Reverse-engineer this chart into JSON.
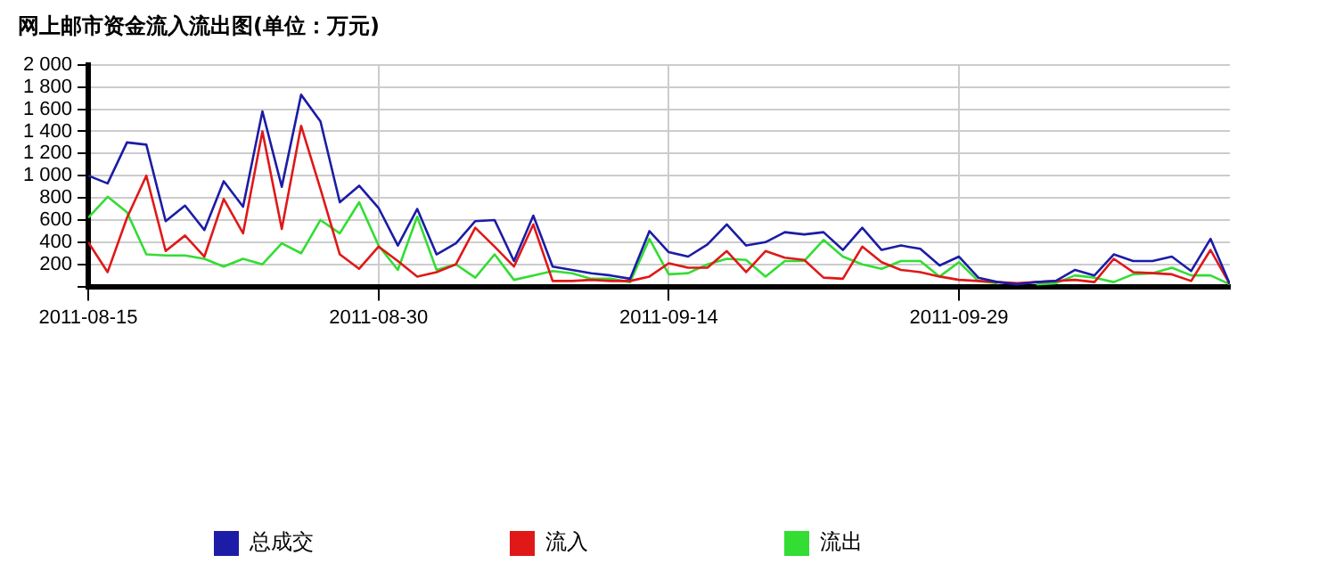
{
  "chart_data": {
    "type": "line",
    "title": "网上邮市资金流入流出图(单位：万元)",
    "x": [
      "2011-08-15",
      "2011-08-16",
      "2011-08-17",
      "2011-08-18",
      "2011-08-19",
      "2011-08-20",
      "2011-08-21",
      "2011-08-22",
      "2011-08-23",
      "2011-08-24",
      "2011-08-25",
      "2011-08-26",
      "2011-08-27",
      "2011-08-28",
      "2011-08-29",
      "2011-08-30",
      "2011-08-31",
      "2011-09-01",
      "2011-09-02",
      "2011-09-03",
      "2011-09-04",
      "2011-09-05",
      "2011-09-06",
      "2011-09-07",
      "2011-09-08",
      "2011-09-09",
      "2011-09-10",
      "2011-09-11",
      "2011-09-12",
      "2011-09-13",
      "2011-09-14",
      "2011-09-15",
      "2011-09-16",
      "2011-09-17",
      "2011-09-18",
      "2011-09-19",
      "2011-09-20",
      "2011-09-21",
      "2011-09-22",
      "2011-09-23",
      "2011-09-24",
      "2011-09-25",
      "2011-09-26",
      "2011-09-27",
      "2011-09-28",
      "2011-09-29",
      "2011-09-30",
      "2011-10-01",
      "2011-10-02",
      "2011-10-03",
      "2011-10-04",
      "2011-10-05",
      "2011-10-06",
      "2011-10-07",
      "2011-10-08",
      "2011-10-09",
      "2011-10-10",
      "2011-10-11",
      "2011-10-12",
      "2011-10-13"
    ],
    "series": [
      {
        "name": "总成交",
        "color": "#1c1ca6",
        "values": [
          1000,
          930,
          1300,
          1280,
          590,
          730,
          510,
          950,
          720,
          1580,
          900,
          1730,
          1490,
          760,
          910,
          710,
          370,
          700,
          290,
          390,
          590,
          600,
          230,
          640,
          180,
          150,
          120,
          100,
          70,
          500,
          310,
          270,
          380,
          560,
          370,
          400,
          490,
          470,
          490,
          330,
          530,
          330,
          370,
          340,
          190,
          270,
          80,
          40,
          20,
          40,
          50,
          150,
          100,
          290,
          230,
          230,
          270,
          140,
          430,
          20
        ]
      },
      {
        "name": "流入",
        "color": "#e01818",
        "values": [
          400,
          130,
          620,
          1000,
          320,
          460,
          270,
          790,
          480,
          1400,
          520,
          1450,
          880,
          290,
          160,
          360,
          230,
          90,
          130,
          200,
          530,
          360,
          180,
          560,
          50,
          50,
          60,
          50,
          50,
          90,
          210,
          170,
          170,
          320,
          130,
          320,
          260,
          240,
          80,
          70,
          360,
          220,
          150,
          130,
          90,
          60,
          50,
          40,
          30,
          40,
          50,
          60,
          40,
          250,
          130,
          120,
          110,
          50,
          330,
          20
        ]
      },
      {
        "name": "流出",
        "color": "#33dd33",
        "values": [
          620,
          810,
          670,
          290,
          280,
          280,
          250,
          180,
          250,
          200,
          390,
          300,
          600,
          480,
          760,
          370,
          150,
          630,
          150,
          200,
          80,
          290,
          60,
          100,
          140,
          120,
          70,
          70,
          40,
          430,
          110,
          120,
          200,
          250,
          240,
          90,
          230,
          230,
          420,
          270,
          200,
          160,
          230,
          230,
          90,
          220,
          50,
          30,
          null,
          20,
          30,
          100,
          80,
          40,
          110,
          120,
          170,
          100,
          100,
          20
        ]
      }
    ],
    "xlim": [
      "2011-08-15",
      "2011-10-13"
    ],
    "xticks": [
      "2011-08-15",
      "2011-08-30",
      "2011-09-14",
      "2011-09-29"
    ],
    "ylim": [
      0,
      2000
    ],
    "yticks": [
      {
        "value": 0,
        "label": null
      },
      200,
      400,
      600,
      800,
      {
        "value": 1000,
        "label": "1 000"
      },
      {
        "value": 1200,
        "label": "1 200"
      },
      {
        "value": 1400,
        "label": "1 400"
      },
      {
        "value": 1600,
        "label": "1 600"
      },
      {
        "value": 1800,
        "label": "1 800"
      },
      {
        "value": 2000,
        "label": "2 000"
      }
    ],
    "grid": true,
    "legend": "bottom",
    "marker": "none",
    "line_style": "solid"
  }
}
